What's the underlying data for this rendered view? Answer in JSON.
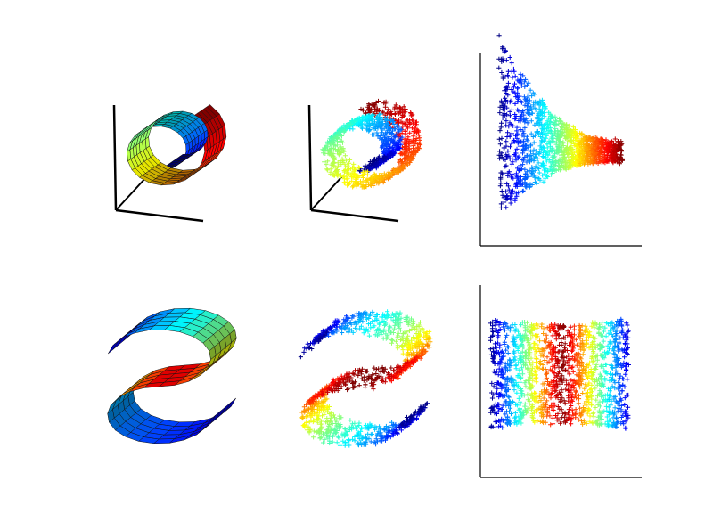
{
  "figure": {
    "background": "#ffffff",
    "colormap": [
      "#00007f",
      "#0000ff",
      "#007fff",
      "#00ffff",
      "#7fff7f",
      "#ffff00",
      "#ff7f00",
      "#ff0000",
      "#7f0000"
    ]
  },
  "chart_data": [
    {
      "type": "surface",
      "shape": "swiss-roll",
      "colormap": "jet",
      "axes": "3d",
      "title": "",
      "xlabel": "",
      "ylabel": ""
    },
    {
      "type": "scatter",
      "shape": "swiss-roll",
      "projection": "3d",
      "marker": "+",
      "colormap": "jet",
      "axes": "3d",
      "title": "",
      "xlabel": "",
      "ylabel": ""
    },
    {
      "type": "scatter",
      "shape": "swiss-roll-2d-embedding",
      "marker": "+",
      "colormap": "jet",
      "ticks": false,
      "spines": [
        "left",
        "bottom"
      ],
      "title": "",
      "xlabel": "",
      "ylabel": ""
    },
    {
      "type": "surface",
      "shape": "s-curve",
      "colormap": "jet",
      "axes": "none",
      "title": "",
      "xlabel": "",
      "ylabel": ""
    },
    {
      "type": "scatter",
      "shape": "s-curve",
      "projection": "3d",
      "marker": "+",
      "colormap": "jet",
      "axes": "none",
      "title": "",
      "xlabel": "",
      "ylabel": ""
    },
    {
      "type": "scatter",
      "shape": "s-curve-2d-embedding",
      "marker": "+",
      "colormap": "jet",
      "ticks": false,
      "spines": [
        "left",
        "bottom"
      ],
      "title": "",
      "xlabel": "",
      "ylabel": ""
    }
  ]
}
